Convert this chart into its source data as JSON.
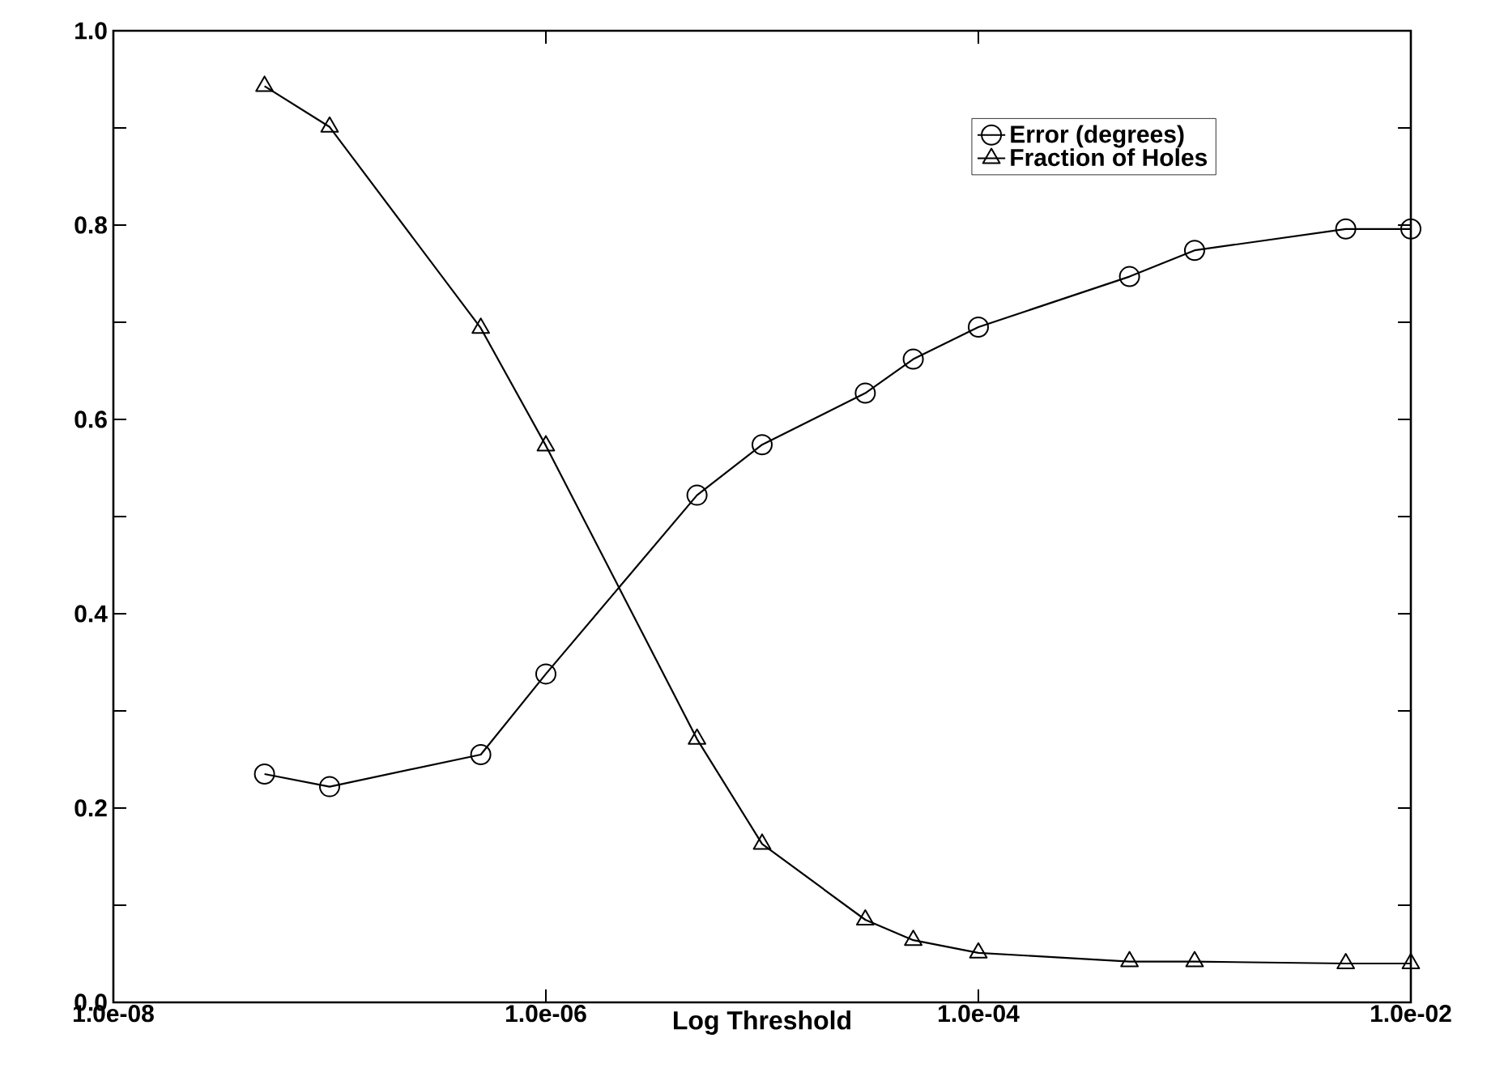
{
  "chart_data": {
    "type": "line",
    "xlabel": "Log Threshold",
    "log": "x",
    "x": [
      5e-08,
      1e-07,
      5e-07,
      1e-06,
      5e-06,
      1e-05,
      3e-05,
      5e-05,
      0.0001,
      0.0005,
      0.001,
      0.005,
      0.01
    ],
    "series": [
      {
        "name": "Error (degrees)",
        "color": "#000000",
        "marker": "circle",
        "values": [
          0.235,
          0.222,
          0.255,
          0.338,
          0.522,
          0.574,
          0.627,
          0.662,
          0.695,
          0.747,
          0.774,
          0.796,
          0.796
        ]
      },
      {
        "name": "Fraction of Holes",
        "color": "#000000",
        "marker": "triangle",
        "values": [
          0.943,
          0.901,
          0.694,
          0.573,
          0.271,
          0.163,
          0.085,
          0.064,
          0.051,
          0.042,
          0.042,
          0.04,
          0.04
        ]
      }
    ],
    "xlim": [
      1e-08,
      0.01
    ],
    "xticks": [
      {
        "value": 1e-08,
        "label": "1.0e-08"
      },
      {
        "value": 1e-06,
        "label": "1.0e-06"
      },
      {
        "value": 0.0001,
        "label": "1.0e-04"
      },
      {
        "value": 0.01,
        "label": "1.0e-02"
      }
    ],
    "ylim": [
      0,
      1
    ],
    "yticks": [
      {
        "value": 0,
        "label": "0.0"
      },
      {
        "value": 0.1,
        "label": null
      },
      {
        "value": 0.2,
        "label": "0.2"
      },
      {
        "value": 0.3,
        "label": null
      },
      {
        "value": 0.4,
        "label": "0.4"
      },
      {
        "value": 0.5,
        "label": null
      },
      {
        "value": 0.6,
        "label": "0.6"
      },
      {
        "value": 0.7,
        "label": null
      },
      {
        "value": 0.8,
        "label": "0.8"
      },
      {
        "value": 0.9,
        "label": null
      },
      {
        "value": 1,
        "label": "1.0"
      }
    ],
    "grid": false,
    "legend": "top right",
    "line_style": "solid"
  }
}
